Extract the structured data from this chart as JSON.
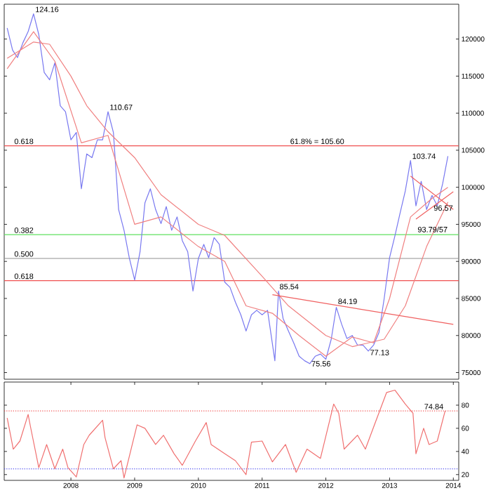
{
  "chart_data": [
    {
      "type": "line",
      "xlim": [
        "2006-12-15",
        "2014-02-01"
      ],
      "ylim": [
        74100,
        124700
      ],
      "yticks": [
        75000,
        80000,
        85000,
        90000,
        95000,
        100000,
        105000,
        110000,
        115000,
        120000
      ],
      "tick_labels": "y",
      "series": [
        {
          "color": "#7878f0",
          "x": [
            "2007-01",
            "2007-02",
            "2007-03",
            "2007-04",
            "2007-05",
            "2007-06",
            "2007-07",
            "2007-08",
            "2007-09",
            "2007-10",
            "2007-11",
            "2007-12",
            "2008-01",
            "2008-02",
            "2008-03",
            "2008-04",
            "2008-05",
            "2008-06",
            "2008-07",
            "2008-08",
            "2008-09",
            "2008-10",
            "2008-11",
            "2008-12",
            "2009-01",
            "2009-02",
            "2009-03",
            "2009-04",
            "2009-05",
            "2009-06",
            "2009-07",
            "2009-08",
            "2009-09",
            "2009-10",
            "2009-11",
            "2009-12",
            "2010-01",
            "2010-02",
            "2010-03",
            "2010-04",
            "2010-05",
            "2010-06",
            "2010-07",
            "2010-08",
            "2010-09",
            "2010-10",
            "2010-11",
            "2010-12",
            "2011-01",
            "2011-02",
            "2011-03-15",
            "2011-04-05",
            "2011-05",
            "2011-06",
            "2011-07",
            "2011-08",
            "2011-09",
            "2011-10",
            "2011-11",
            "2011-12",
            "2012-01",
            "2012-02",
            "2012-03",
            "2012-04",
            "2012-05",
            "2012-06",
            "2012-07",
            "2012-08",
            "2012-09",
            "2012-10",
            "2012-11",
            "2012-12",
            "2013-01",
            "2013-02",
            "2013-03",
            "2013-04",
            "2013-05",
            "2013-06",
            "2013-07",
            "2013-08",
            "2013-09",
            "2013-10",
            "2013-11",
            "2013-12"
          ],
          "values": [
            121500,
            118500,
            117500,
            119500,
            121000,
            123400,
            120600,
            115500,
            114500,
            116800,
            111000,
            110200,
            106400,
            107400,
            99800,
            104500,
            104000,
            106400,
            106400,
            110200,
            107400,
            97000,
            94200,
            90500,
            87500,
            91300,
            97900,
            99800,
            97000,
            95100,
            97400,
            94200,
            96000,
            92800,
            91300,
            86000,
            90400,
            92300,
            90500,
            93200,
            92300,
            87200,
            86500,
            84500,
            82800,
            80600,
            82800,
            83400,
            82800,
            83400,
            76600,
            86000,
            82300,
            80600,
            79000,
            77200,
            76600,
            76200,
            77200,
            77500,
            76800,
            79500,
            83800,
            81500,
            79600,
            80000,
            78700,
            78700,
            77900,
            78700,
            80400,
            85000,
            90500,
            93500,
            96400,
            99500,
            103600,
            97500,
            100800,
            97000,
            98900,
            97500,
            100500,
            104200
          ]
        },
        {
          "color": "#f08080",
          "x": [
            "2007-01",
            "2007-06",
            "2007-09",
            "2008-01",
            "2008-04",
            "2008-08",
            "2009-01",
            "2009-06",
            "2010-01",
            "2010-06",
            "2011-01",
            "2011-06",
            "2012-01",
            "2012-06",
            "2012-12",
            "2013-04",
            "2013-08",
            "2013-12"
          ],
          "values": [
            117400,
            119600,
            119300,
            115000,
            111000,
            107500,
            104000,
            99000,
            95000,
            93500,
            88000,
            84000,
            80000,
            78500,
            79500,
            84000,
            92000,
            98000
          ]
        },
        {
          "color": "#f08080",
          "x": [
            "2007-01",
            "2007-06",
            "2007-10",
            "2008-03",
            "2008-08",
            "2009-01",
            "2009-06",
            "2010-01",
            "2010-06",
            "2010-10",
            "2011-03",
            "2011-08",
            "2012-01",
            "2012-06",
            "2012-10",
            "2013-01",
            "2013-05",
            "2013-09",
            "2013-12"
          ],
          "values": [
            116000,
            121000,
            117000,
            106000,
            107000,
            95000,
            96000,
            92000,
            90000,
            84000,
            83000,
            80000,
            77200,
            79800,
            79000,
            85000,
            96000,
            98500,
            100000
          ]
        },
        {
          "color": "#f06060",
          "x": [
            "2011-03",
            "2014-01"
          ],
          "values": [
            85500,
            81500
          ]
        },
        {
          "color": "#f06060",
          "x": [
            "2013-05",
            "2014-01"
          ],
          "values": [
            101500,
            97000
          ]
        },
        {
          "color": "#f06060",
          "x": [
            "2013-06",
            "2014-01"
          ],
          "values": [
            95700,
            99400
          ]
        }
      ],
      "ref_lines": [
        {
          "axis": "y",
          "value": 105600,
          "color": "#f05050"
        },
        {
          "axis": "y",
          "value": 93600,
          "color": "#60e060"
        },
        {
          "axis": "y",
          "value": 90400,
          "color": "#909090"
        },
        {
          "axis": "y",
          "value": 87400,
          "color": "#f05050"
        }
      ],
      "annotations": [
        {
          "text": "124.16",
          "x": "2007-06",
          "y": 123400
        },
        {
          "text": "110.67",
          "x": "2008-08",
          "y": 110200
        },
        {
          "text": "61.8% = 105.60",
          "x": "2011-06",
          "y": 105600
        },
        {
          "text": "0.618",
          "x": "2007-02",
          "y": 105600
        },
        {
          "text": "0.382",
          "x": "2007-02",
          "y": 93600
        },
        {
          "text": "0.500",
          "x": "2007-02",
          "y": 90400
        },
        {
          "text": "0.618",
          "x": "2007-02",
          "y": 87400
        },
        {
          "text": "103.74",
          "x": "2013-05",
          "y": 103600
        },
        {
          "text": "96.57",
          "x": "2013-09",
          "y": 96600
        },
        {
          "text": "93.79/57",
          "x": "2013-06",
          "y": 93700
        },
        {
          "text": "85.54",
          "x": "2011-04",
          "y": 86000
        },
        {
          "text": "84.19",
          "x": "2012-03",
          "y": 84000
        },
        {
          "text": "75.56",
          "x": "2011-10",
          "y": 75600
        },
        {
          "text": "77.13",
          "x": "2012-09",
          "y": 77100
        }
      ]
    },
    {
      "type": "line",
      "xlim": [
        "2006-12-15",
        "2014-02-01"
      ],
      "ylim": [
        15,
        100
      ],
      "yticks": [
        20,
        40,
        60,
        80
      ],
      "xticks": [
        {
          "value": "2008-01-01",
          "label": "2008"
        },
        {
          "value": "2009-01-01",
          "label": "2009"
        },
        {
          "value": "2010-01-01",
          "label": "2010"
        },
        {
          "value": "2011-01-01",
          "label": "2011"
        },
        {
          "value": "2012-01-01",
          "label": "2012"
        },
        {
          "value": "2013-01-01",
          "label": "2013"
        },
        {
          "value": "2014-01-01",
          "label": "2014"
        }
      ],
      "series": [
        {
          "color": "#f07070",
          "x": [
            "2007-01-01",
            "2007-02-05",
            "2007-03-15",
            "2007-05-01",
            "2007-05-15",
            "2007-07-01",
            "2007-08-15",
            "2007-10-01",
            "2007-11-15",
            "2007-12-15",
            "2008-02-01",
            "2008-03-15",
            "2008-04-15",
            "2008-07-01",
            "2008-07-15",
            "2008-09-01",
            "2008-10-15",
            "2008-11-01",
            "2009-01-15",
            "2009-03-01",
            "2009-05-01",
            "2009-06-15",
            "2009-08-15",
            "2009-10-01",
            "2009-12-15",
            "2010-02-15",
            "2010-03-15",
            "2010-06-01",
            "2010-08-01",
            "2010-10-01",
            "2010-11-01",
            "2011-01-01",
            "2011-03-01",
            "2011-05-15",
            "2011-07-15",
            "2011-09-15",
            "2011-12-01",
            "2012-02-15",
            "2012-03-15",
            "2012-04-15",
            "2012-07-01",
            "2012-08-15",
            "2012-10-01",
            "2012-12-15",
            "2013-02-01",
            "2013-04-01",
            "2013-05-15",
            "2013-06-01",
            "2013-07-15",
            "2013-08-15",
            "2013-10-01",
            "2013-11-15"
          ],
          "values": [
            69,
            42,
            49,
            72,
            61,
            26,
            46,
            25,
            42,
            26,
            18,
            46,
            54,
            67,
            52,
            25,
            32,
            17,
            63,
            60,
            46,
            54,
            38,
            28,
            49,
            65,
            46,
            38,
            32,
            20,
            48,
            49,
            31,
            46,
            22,
            42,
            34,
            81,
            73,
            42,
            54,
            42,
            61,
            91,
            93,
            81,
            73,
            38,
            60,
            46,
            49,
            75
          ]
        }
      ],
      "ref_lines": [
        {
          "axis": "y",
          "value": 75,
          "color": "#f05050",
          "line_style": "dotted"
        },
        {
          "axis": "y",
          "value": 25,
          "color": "#5050f0",
          "line_style": "dotted"
        }
      ],
      "annotations": [
        {
          "text": "74.84",
          "x": "2013-11-15",
          "y": 75
        }
      ]
    }
  ]
}
